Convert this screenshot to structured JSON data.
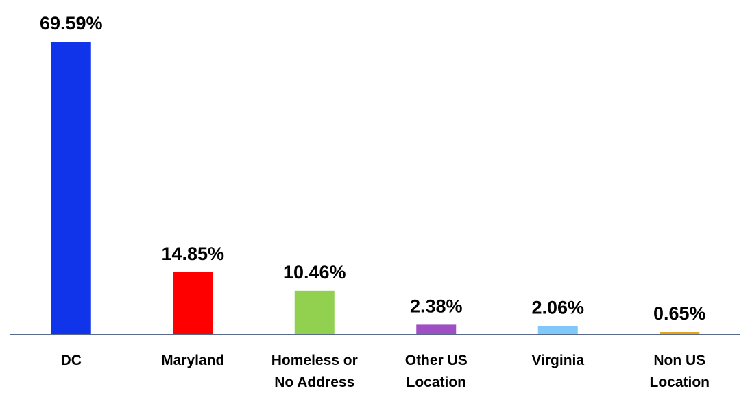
{
  "chart_data": {
    "type": "bar",
    "categories": [
      "DC",
      "Maryland",
      "Homeless or No Address",
      "Other US Location",
      "Virginia",
      "Non US Location"
    ],
    "values": [
      69.59,
      14.85,
      10.46,
      2.38,
      2.06,
      0.65
    ],
    "value_labels": [
      "69.59%",
      "14.85%",
      "10.46%",
      "2.38%",
      "2.06%",
      "0.65%"
    ],
    "colors": [
      "#1034ea",
      "#ff0000",
      "#92d050",
      "#9e4fc4",
      "#7fc8f8",
      "#e8a317"
    ]
  }
}
